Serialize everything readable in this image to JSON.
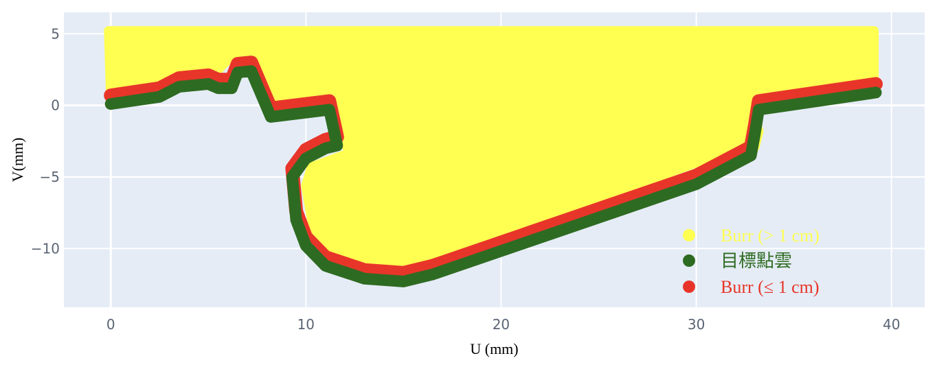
{
  "chart_data": {
    "type": "scatter",
    "xlabel": "U (mm)",
    "ylabel": "V(mm)",
    "xlim": [
      -2.4,
      41.7
    ],
    "ylim": [
      -14.1,
      6.5
    ],
    "xticks": [
      0,
      10,
      20,
      30,
      40
    ],
    "yticks": [
      5,
      0,
      -5,
      -10
    ],
    "xtick_labels": [
      "0",
      "10",
      "20",
      "30",
      "40"
    ],
    "ytick_labels": [
      "5",
      "0",
      "−5",
      "−10"
    ],
    "grid": true,
    "legend_position": "bottom-right",
    "colors": {
      "plot_background": "#e5ecf6",
      "grid": "#ffffff",
      "burr_large": "#ffff52",
      "target": "#2e6b22",
      "burr_small": "#e8352a"
    },
    "series": [
      {
        "name": "Burr (> 1 cm)",
        "color": "#ffff52",
        "x": [
          -0.1,
          39.1,
          39.1,
          32.6,
          33.2,
          33.0,
          31.0,
          15.0,
          12.5,
          10.5,
          10.0,
          10.3,
          12.3,
          12.0,
          11.5,
          8.8,
          8.2,
          7.2,
          6.0,
          5.5,
          4.5,
          3.0,
          0.0
        ],
        "y": [
          5.2,
          5.2,
          1.8,
          0.6,
          -1.8,
          -2.9,
          -3.5,
          -11.5,
          -11.2,
          -9.5,
          -5.6,
          -4.3,
          -3.3,
          -2.7,
          0.3,
          0.3,
          0.4,
          2.8,
          3.2,
          2.5,
          2.3,
          2.0,
          0.8
        ]
      },
      {
        "name": "目標點雲",
        "color": "#2e6b22",
        "x": [
          0.0,
          2.5,
          3.5,
          5.0,
          5.5,
          6.2,
          6.5,
          7.2,
          8.2,
          11.2,
          11.6,
          11.0,
          10.0,
          9.3,
          9.5,
          10.0,
          11.0,
          13.0,
          15.0,
          16.5,
          30.0,
          32.8,
          33.0,
          33.2,
          39.2
        ],
        "y": [
          0.1,
          0.6,
          1.3,
          1.5,
          1.2,
          1.2,
          2.3,
          2.4,
          -0.8,
          -0.3,
          -2.8,
          -3.0,
          -3.7,
          -5.0,
          -8.0,
          -9.8,
          -11.2,
          -12.1,
          -12.3,
          -11.8,
          -5.5,
          -3.5,
          -2.0,
          -0.3,
          0.9
        ]
      },
      {
        "name": "Burr (≤ 1 cm)",
        "color": "#e8352a",
        "x": [
          0.0,
          2.5,
          3.5,
          5.0,
          5.5,
          6.2,
          6.5,
          7.2,
          8.2,
          11.2,
          11.6,
          11.0,
          10.0,
          9.3,
          9.5,
          10.0,
          11.0,
          13.0,
          15.0,
          16.5,
          30.0,
          32.8,
          33.0,
          33.2,
          39.2
        ],
        "y": [
          0.1,
          0.6,
          1.3,
          1.5,
          1.2,
          1.2,
          2.3,
          2.4,
          -0.8,
          -0.3,
          -2.8,
          -3.0,
          -3.7,
          -5.0,
          -8.0,
          -9.8,
          -11.2,
          -12.1,
          -12.3,
          -11.8,
          -5.5,
          -3.5,
          -2.0,
          -0.3,
          0.9
        ],
        "offset_mm": [
          0.0,
          0.6
        ]
      }
    ]
  }
}
